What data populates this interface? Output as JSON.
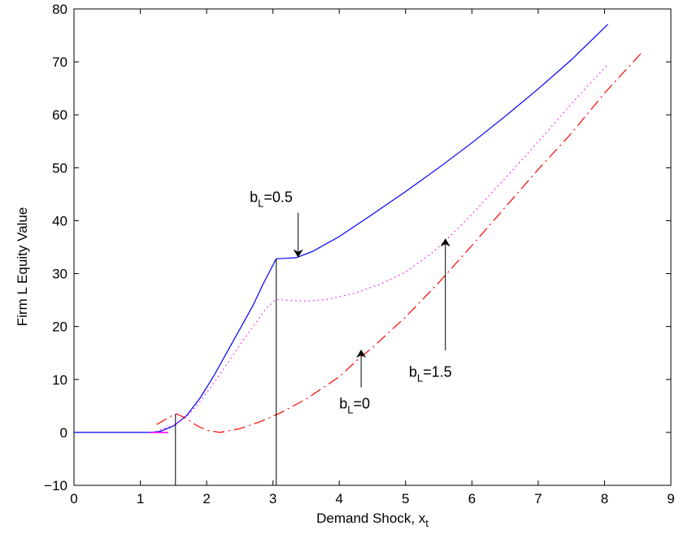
{
  "chart_data": {
    "type": "line",
    "title": "",
    "xlabel": "Demand Shock, x",
    "xlabel_subscript": "t",
    "ylabel": "Firm L Equity Value",
    "xlim": [
      0,
      9
    ],
    "ylim": [
      -10,
      80
    ],
    "xticks": [
      0,
      1,
      2,
      3,
      4,
      5,
      6,
      7,
      8,
      9
    ],
    "yticks": [
      -10,
      0,
      10,
      20,
      30,
      40,
      50,
      60,
      70,
      80
    ],
    "xtick_labels": [
      "0",
      "1",
      "2",
      "3",
      "4",
      "5",
      "6",
      "7",
      "8",
      "9"
    ],
    "ytick_labels": [
      "−10",
      "0",
      "10",
      "20",
      "30",
      "40",
      "50",
      "60",
      "70",
      "80"
    ],
    "grid": false,
    "colors": {
      "blue": "#0000ff",
      "magenta": "#ff00ff",
      "red": "#ff0000",
      "black": "#000000"
    },
    "series": [
      {
        "style": "solid",
        "color": "#0000ff",
        "points": [
          [
            0,
            0
          ],
          [
            1.15,
            0
          ],
          [
            1.3,
            0.2
          ],
          [
            1.5,
            1.2
          ],
          [
            1.7,
            3.2
          ],
          [
            1.9,
            6.5
          ],
          [
            2.1,
            10.5
          ],
          [
            2.3,
            15
          ],
          [
            2.5,
            19.5
          ],
          [
            2.7,
            24
          ],
          [
            2.85,
            28
          ],
          [
            3.05,
            32.8
          ],
          [
            3.2,
            32.9
          ],
          [
            3.35,
            33
          ],
          [
            3.6,
            34.2
          ],
          [
            4.0,
            37.0
          ],
          [
            4.5,
            41.2
          ],
          [
            5.0,
            45.5
          ],
          [
            5.5,
            50.0
          ],
          [
            6.0,
            54.7
          ],
          [
            6.5,
            59.7
          ],
          [
            7.0,
            64.9
          ],
          [
            7.5,
            70.4
          ],
          [
            8.05,
            77.1
          ]
        ]
      },
      {
        "style": "dotted",
        "color": "#ff00ff",
        "points": [
          [
            1.3,
            0.5
          ],
          [
            1.5,
            1.3
          ],
          [
            1.7,
            3.0
          ],
          [
            1.9,
            5.8
          ],
          [
            2.1,
            9.2
          ],
          [
            2.3,
            12.8
          ],
          [
            2.5,
            16.5
          ],
          [
            2.7,
            20.0
          ],
          [
            2.9,
            23.5
          ],
          [
            3.05,
            25.1
          ],
          [
            3.3,
            24.9
          ],
          [
            3.5,
            24.8
          ],
          [
            3.8,
            25.1
          ],
          [
            4.2,
            26.2
          ],
          [
            4.6,
            27.9
          ],
          [
            5.0,
            30.3
          ],
          [
            5.4,
            33.9
          ],
          [
            5.6,
            36.2
          ],
          [
            6.0,
            41.2
          ],
          [
            6.5,
            48.0
          ],
          [
            7.0,
            54.9
          ],
          [
            7.5,
            62.1
          ],
          [
            8.05,
            69.5
          ]
        ]
      },
      {
        "style": "dashed",
        "color": "#ff0000",
        "points": [
          [
            1.25,
            1.5
          ],
          [
            1.45,
            3.0
          ],
          [
            1.55,
            3.5
          ],
          [
            1.7,
            2.6
          ],
          [
            1.85,
            1.3
          ],
          [
            2.0,
            0.4
          ],
          [
            2.2,
            0
          ],
          [
            2.5,
            0.7
          ],
          [
            2.8,
            2.0
          ],
          [
            3.1,
            3.6
          ],
          [
            3.5,
            6.3
          ],
          [
            4.0,
            10.5
          ],
          [
            4.3,
            14.0
          ],
          [
            4.5,
            16.0
          ],
          [
            5.0,
            21.8
          ],
          [
            5.5,
            28.3
          ],
          [
            6.0,
            35.3
          ],
          [
            6.5,
            42.5
          ],
          [
            7.0,
            49.7
          ],
          [
            7.5,
            56.5
          ],
          [
            8.0,
            64.1
          ],
          [
            8.55,
            71.6
          ]
        ]
      }
    ],
    "small_segment": {
      "color": "#ff00ff",
      "x": [
        1.15,
        1.42
      ],
      "y": 0
    },
    "vertical_lines": [
      {
        "x": 1.53,
        "y": [
          -10,
          3.5
        ]
      },
      {
        "x": 3.05,
        "y": [
          -10,
          32.8
        ]
      }
    ],
    "annotations": [
      {
        "text": "b",
        "sub": "L",
        "rest": "=0.5",
        "label_at": [
          2.65,
          43.5
        ],
        "arrow_from": [
          3.38,
          41.5
        ],
        "arrow_to": [
          3.38,
          33.2
        ]
      },
      {
        "text": "b",
        "sub": "L",
        "rest": "=1.5",
        "label_at": [
          5.05,
          10.5
        ],
        "arrow_from": [
          5.6,
          15.5
        ],
        "arrow_to": [
          5.6,
          36.5
        ]
      },
      {
        "text": "b",
        "sub": "L",
        "rest": "=0",
        "label_at": [
          4.0,
          4.5
        ],
        "arrow_from": [
          4.33,
          8.5
        ],
        "arrow_to": [
          4.33,
          15.5
        ]
      }
    ]
  }
}
